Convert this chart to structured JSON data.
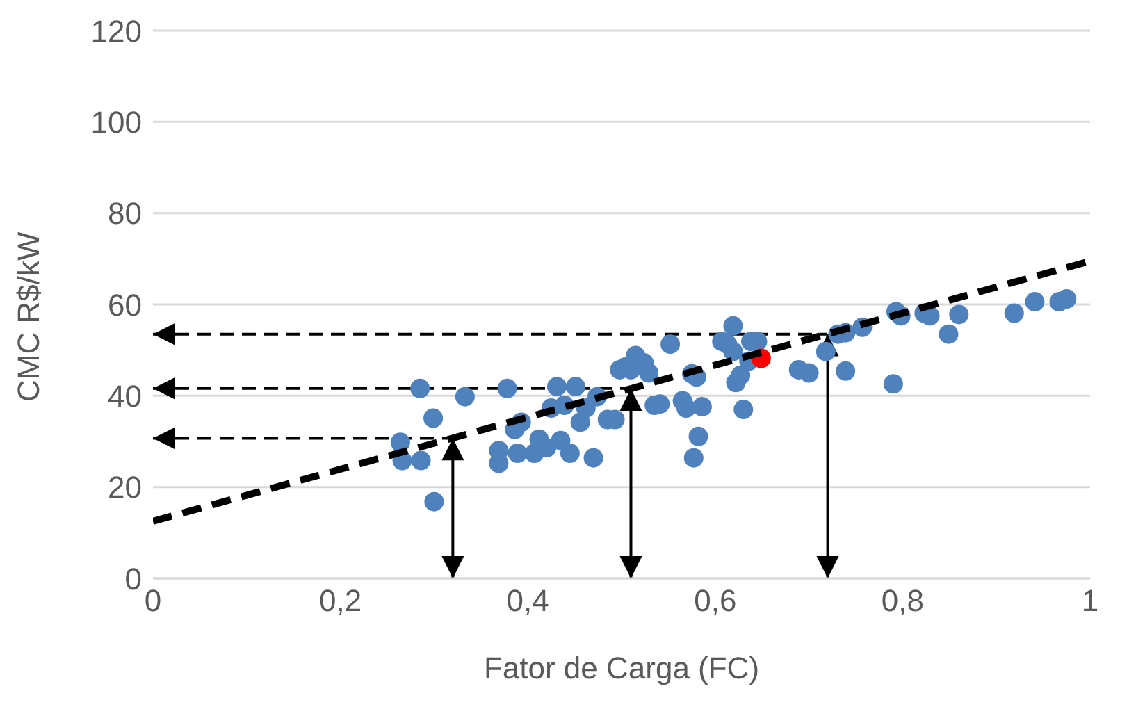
{
  "chart_data": {
    "type": "scatter",
    "xlabel": "Fator de Carga (FC)",
    "ylabel": "CMC R$/kW",
    "xlim": [
      0,
      1
    ],
    "xticks": [
      {
        "value": 0,
        "label": "0"
      },
      {
        "value": 0.2,
        "label": "0,2"
      },
      {
        "value": 0.4,
        "label": "0,4"
      },
      {
        "value": 0.6,
        "label": "0,6"
      },
      {
        "value": 0.8,
        "label": "0,8"
      },
      {
        "value": 1,
        "label": "1"
      }
    ],
    "ylim": [
      0,
      120
    ],
    "yticks": [
      0,
      20,
      40,
      60,
      80,
      100,
      120
    ],
    "grid": "y",
    "legend": false,
    "marker": "circle",
    "series": [
      {
        "color": "#4f81bd",
        "x": [
          0.264,
          0.266,
          0.285,
          0.286,
          0.299,
          0.3,
          0.333,
          0.369,
          0.369,
          0.378,
          0.386,
          0.389,
          0.393,
          0.407,
          0.412,
          0.42,
          0.425,
          0.431,
          0.435,
          0.439,
          0.445,
          0.451,
          0.456,
          0.462,
          0.47,
          0.474,
          0.485,
          0.493,
          0.498,
          0.504,
          0.51,
          0.515,
          0.524,
          0.529,
          0.535,
          0.541,
          0.552,
          0.565,
          0.569,
          0.575,
          0.577,
          0.582,
          0.586,
          0.58,
          0.607,
          0.613,
          0.619,
          0.619,
          0.622,
          0.627,
          0.63,
          0.636,
          0.638,
          0.645,
          0.689,
          0.7,
          0.718,
          0.731,
          0.739,
          0.757,
          0.739,
          0.79,
          0.793,
          0.798,
          0.823,
          0.829,
          0.849,
          0.86,
          0.919,
          0.941,
          0.967,
          0.975
        ],
        "values": [
          29.8,
          25.8,
          41.6,
          25.8,
          35.1,
          16.8,
          39.8,
          25.2,
          28,
          41.6,
          32.6,
          27.4,
          34.2,
          27.4,
          30.5,
          28.6,
          37.3,
          42,
          30.2,
          37.9,
          27.4,
          42,
          34.2,
          37.3,
          26.4,
          39.8,
          34.8,
          34.8,
          45.7,
          46.3,
          45.7,
          48.8,
          47.2,
          45,
          37.9,
          38.2,
          51.3,
          38.9,
          37.3,
          44.8,
          26.4,
          31.1,
          37.6,
          44.1,
          51.9,
          51.3,
          49.7,
          55.3,
          42.9,
          44.5,
          37,
          47.6,
          51.9,
          51.9,
          45.7,
          45,
          49.7,
          53.5,
          53.8,
          55,
          45.4,
          42.6,
          58.4,
          57.5,
          58.1,
          57.5,
          53.5,
          57.8,
          58.1,
          60.6,
          60.6,
          61.2
        ]
      },
      {
        "color": "#ff0000",
        "x": [
          0.649
        ],
        "values": [
          48.2
        ]
      },
      {
        "type": "line",
        "color": "#000000",
        "line_style": "dashed",
        "marker": "none",
        "x": [
          0,
          1
        ],
        "values": [
          12.5,
          69.5
        ]
      }
    ],
    "ref_lines": [
      {
        "axis": "x",
        "value": 0.32,
        "color": "#000000",
        "line_style": "solid"
      },
      {
        "axis": "x",
        "value": 0.51,
        "color": "#000000",
        "line_style": "solid"
      },
      {
        "axis": "x",
        "value": 0.72,
        "color": "#000000",
        "line_style": "solid"
      },
      {
        "axis": "y",
        "value": 30.7,
        "color": "#000000",
        "line_style": "dashed"
      },
      {
        "axis": "y",
        "value": 41.6,
        "color": "#000000",
        "line_style": "dashed"
      },
      {
        "axis": "y",
        "value": 53.5,
        "color": "#000000",
        "line_style": "dashed"
      }
    ]
  }
}
